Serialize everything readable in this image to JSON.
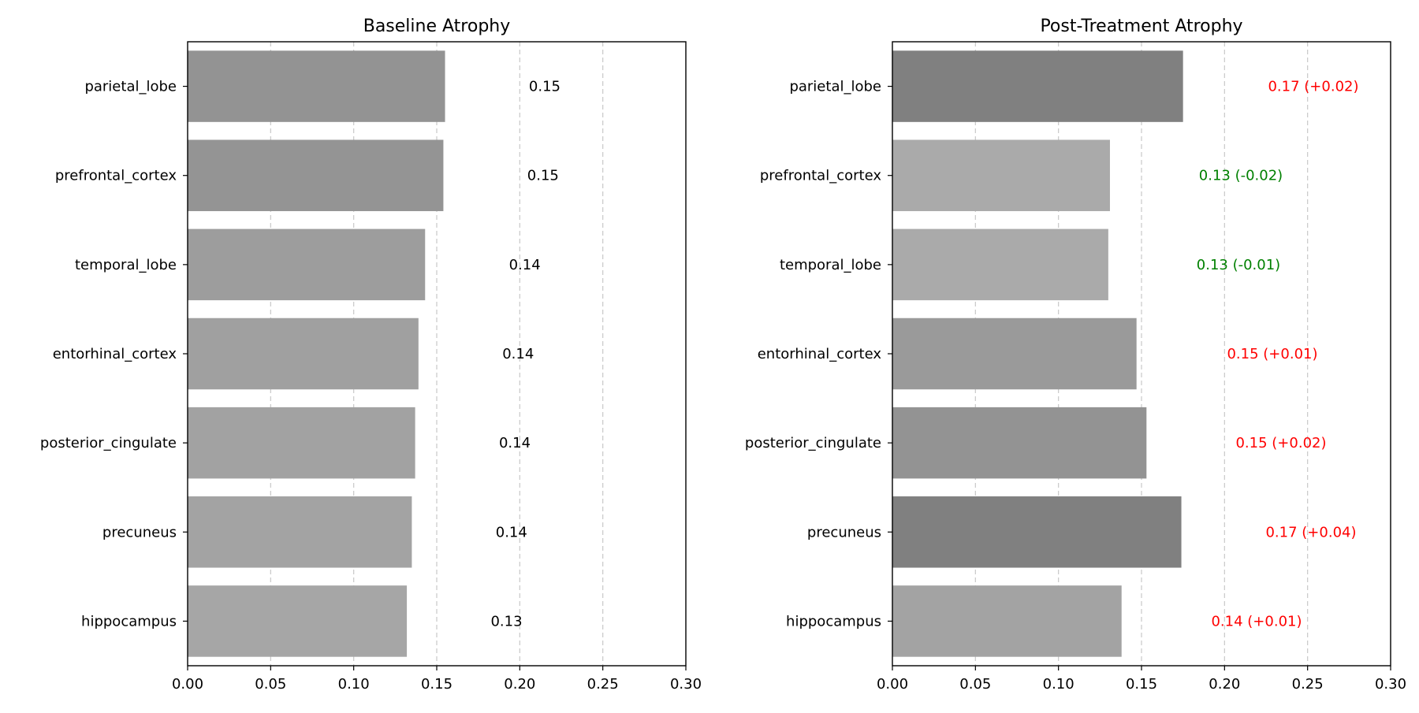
{
  "chart_data": [
    {
      "type": "bar",
      "orientation": "horizontal",
      "title": "Baseline Atrophy",
      "xlabel": "",
      "ylabel": "",
      "xlim": [
        0,
        0.3
      ],
      "xticks": [
        "0.00",
        "0.05",
        "0.10",
        "0.15",
        "0.20",
        "0.25",
        "0.30"
      ],
      "grid": "x-dashed",
      "categories": [
        "parietal_lobe",
        "prefrontal_cortex",
        "temporal_lobe",
        "entorhinal_cortex",
        "posterior_cingulate",
        "precuneus",
        "hippocampus"
      ],
      "values": [
        0.155,
        0.154,
        0.143,
        0.139,
        0.137,
        0.135,
        0.132
      ],
      "value_labels": [
        "0.15",
        "0.15",
        "0.14",
        "0.14",
        "0.14",
        "0.14",
        "0.13"
      ],
      "label_colors": [
        "#000000",
        "#000000",
        "#000000",
        "#000000",
        "#000000",
        "#000000",
        "#000000"
      ],
      "bar_colors": [
        "#939393",
        "#949494",
        "#9d9d9d",
        "#a0a0a0",
        "#a2a2a2",
        "#a3a3a3",
        "#a6a6a6"
      ]
    },
    {
      "type": "bar",
      "orientation": "horizontal",
      "title": "Post-Treatment Atrophy",
      "xlabel": "",
      "ylabel": "",
      "xlim": [
        0,
        0.3
      ],
      "xticks": [
        "0.00",
        "0.05",
        "0.10",
        "0.15",
        "0.20",
        "0.25",
        "0.30"
      ],
      "grid": "x-dashed",
      "categories": [
        "parietal_lobe",
        "prefrontal_cortex",
        "temporal_lobe",
        "entorhinal_cortex",
        "posterior_cingulate",
        "precuneus",
        "hippocampus"
      ],
      "values": [
        0.175,
        0.131,
        0.13,
        0.147,
        0.153,
        0.174,
        0.138
      ],
      "value_labels": [
        "0.17 (+0.02)",
        "0.13 (-0.02)",
        "0.13 (-0.01)",
        "0.15 (+0.01)",
        "0.15 (+0.02)",
        "0.17 (+0.04)",
        "0.14 (+0.01)"
      ],
      "label_colors": [
        "#ff0000",
        "#008000",
        "#008000",
        "#ff0000",
        "#ff0000",
        "#ff0000",
        "#ff0000"
      ],
      "bar_colors": [
        "#808080",
        "#aaaaaa",
        "#aaaaaa",
        "#9a9a9a",
        "#939393",
        "#808080",
        "#a3a3a3"
      ]
    }
  ]
}
